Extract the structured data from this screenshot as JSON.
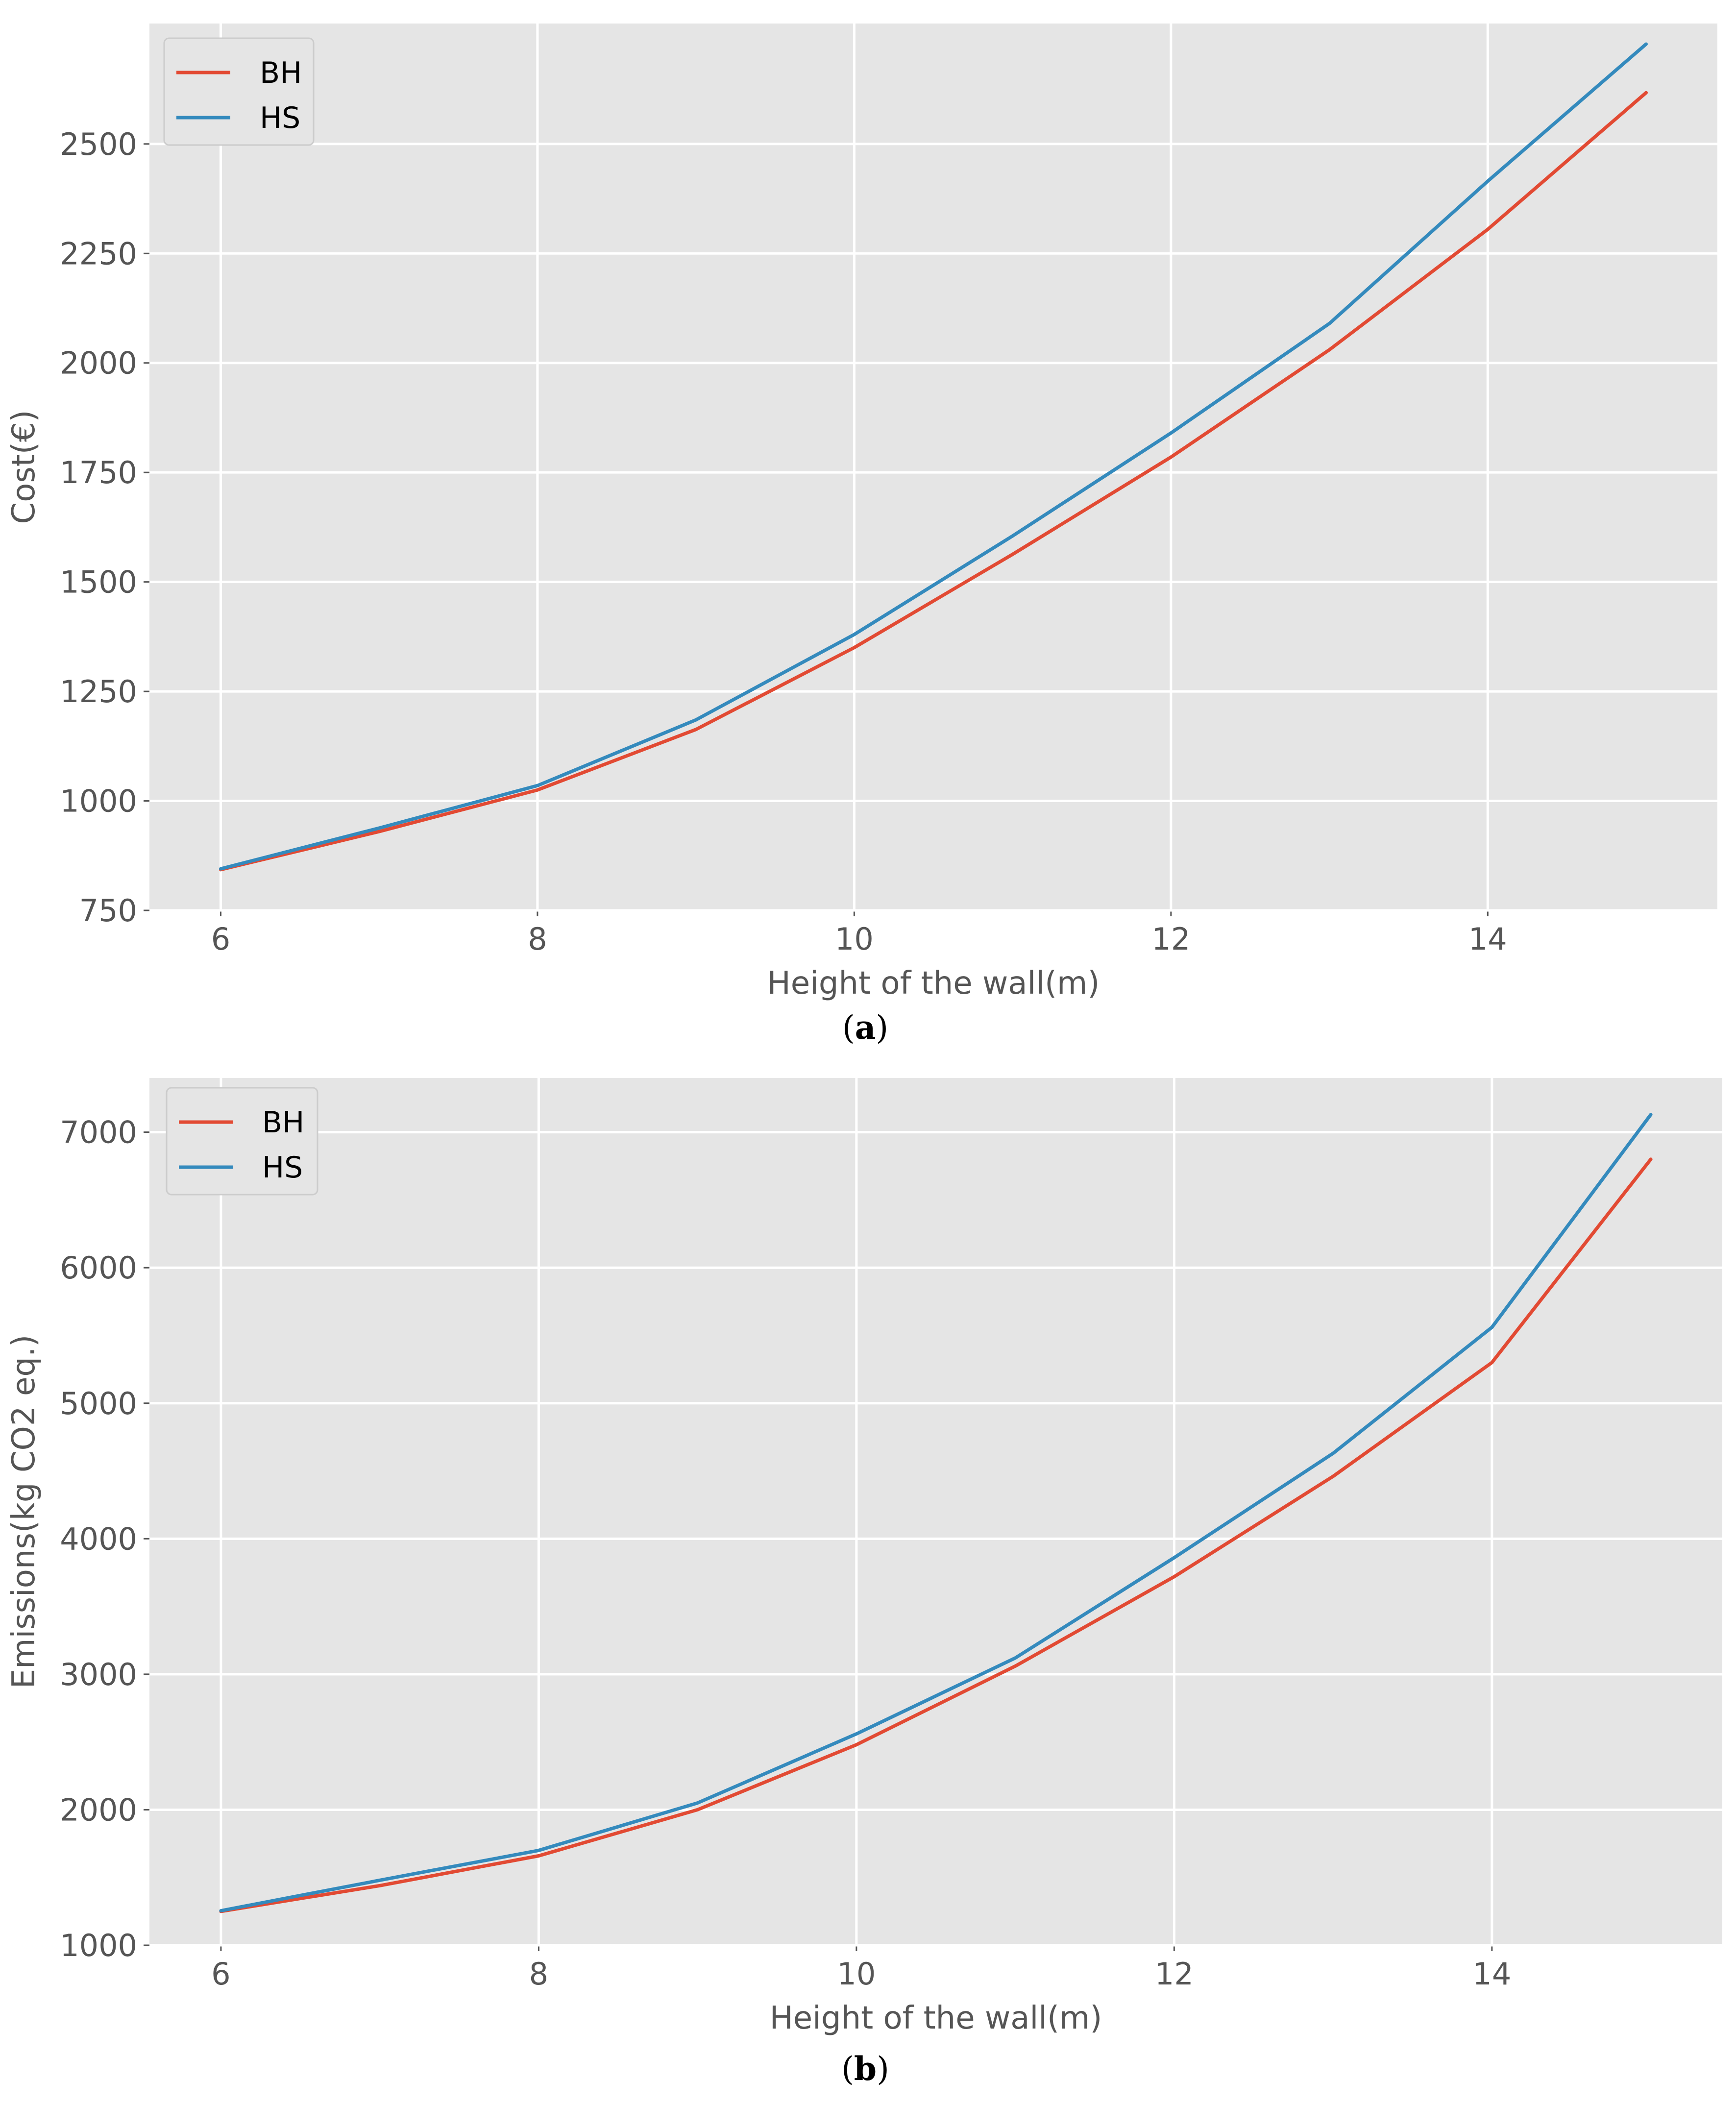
{
  "colors": {
    "BH": "#e24a33",
    "HS": "#348abd",
    "panel_bg": "#e5e5e5",
    "grid": "#ffffff"
  },
  "chart_data": [
    {
      "type": "line",
      "caption_letter": "a",
      "title": "",
      "xlabel": "Height of the wall(m)",
      "ylabel": "Cost(€)",
      "xlim": [
        5.55,
        15.45
      ],
      "ylim": [
        750,
        2775
      ],
      "xticks": [
        6,
        8,
        10,
        12,
        14
      ],
      "yticks": [
        750,
        1000,
        1250,
        1500,
        1750,
        2000,
        2250,
        2500
      ],
      "legend_location": "top-left",
      "x": [
        6,
        7,
        8,
        9,
        10,
        11,
        12,
        13,
        14,
        15
      ],
      "series": [
        {
          "name": "BH",
          "color_key": "BH",
          "values": [
            843,
            930,
            1025,
            1163,
            1350,
            1563,
            1785,
            2030,
            2305,
            2617
          ]
        },
        {
          "name": "HS",
          "color_key": "HS",
          "values": [
            845,
            938,
            1035,
            1185,
            1380,
            1605,
            1840,
            2090,
            2415,
            2728
          ]
        }
      ]
    },
    {
      "type": "line",
      "caption_letter": "b",
      "title": "",
      "xlabel": "Height of the wall(m)",
      "ylabel": "Emissions(kg CO2 eq.)",
      "xlim": [
        5.55,
        15.45
      ],
      "ylim": [
        1000,
        7400
      ],
      "xticks": [
        6,
        8,
        10,
        12,
        14
      ],
      "yticks": [
        1000,
        2000,
        3000,
        4000,
        5000,
        6000,
        7000
      ],
      "legend_location": "top-left",
      "x": [
        6,
        7,
        8,
        9,
        10,
        11,
        12,
        13,
        14,
        15
      ],
      "series": [
        {
          "name": "BH",
          "color_key": "BH",
          "values": [
            1250,
            1440,
            1660,
            2000,
            2480,
            3060,
            3720,
            4460,
            5300,
            6800
          ]
        },
        {
          "name": "HS",
          "color_key": "HS",
          "values": [
            1255,
            1480,
            1700,
            2050,
            2560,
            3120,
            3860,
            4630,
            5560,
            7130
          ]
        }
      ]
    }
  ]
}
